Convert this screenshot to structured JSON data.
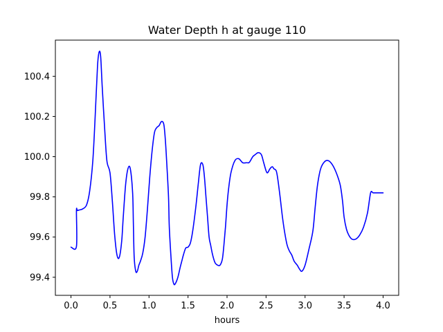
{
  "chart_data": {
    "type": "line",
    "title": "Water Depth h at gauge 110",
    "xlabel": "hours",
    "ylabel": "",
    "xlim": [
      -0.2,
      4.2
    ],
    "ylim": [
      99.31,
      100.58
    ],
    "xticks": [
      0.0,
      0.5,
      1.0,
      1.5,
      2.0,
      2.5,
      3.0,
      3.5,
      4.0
    ],
    "xtick_labels": [
      "0.0",
      "0.5",
      "1.0",
      "1.5",
      "2.0",
      "2.5",
      "3.0",
      "3.5",
      "4.0"
    ],
    "yticks": [
      99.4,
      99.6,
      99.8,
      100.0,
      100.2,
      100.4
    ],
    "ytick_labels": [
      "99.4",
      "99.6",
      "99.8",
      "100.0",
      "100.2",
      "100.4"
    ],
    "grid": false,
    "legend": "none",
    "series": [
      {
        "color": "#0000ff",
        "x": [
          0.0,
          0.07,
          0.07,
          0.08,
          0.1,
          0.15,
          0.2,
          0.24,
          0.28,
          0.31,
          0.34,
          0.36,
          0.38,
          0.4,
          0.43,
          0.46,
          0.5,
          0.53,
          0.56,
          0.59,
          0.62,
          0.65,
          0.67,
          0.7,
          0.73,
          0.76,
          0.79,
          0.8,
          0.81,
          0.83,
          0.85,
          0.87,
          0.89,
          0.92,
          0.95,
          0.98,
          1.01,
          1.04,
          1.07,
          1.1,
          1.13,
          1.16,
          1.19,
          1.21,
          1.23,
          1.25,
          1.26,
          1.28,
          1.3,
          1.32,
          1.34,
          1.37,
          1.4,
          1.42,
          1.44,
          1.47,
          1.5,
          1.53,
          1.56,
          1.6,
          1.63,
          1.66,
          1.69,
          1.71,
          1.73,
          1.75,
          1.77,
          1.79,
          1.81,
          1.83,
          1.85,
          1.88,
          1.91,
          1.94,
          1.96,
          1.98,
          2.0,
          2.02,
          2.05,
          2.1,
          2.15,
          2.2,
          2.25,
          2.28,
          2.3,
          2.33,
          2.36,
          2.4,
          2.44,
          2.47,
          2.5,
          2.52,
          2.55,
          2.58,
          2.6,
          2.63,
          2.65,
          2.68,
          2.71,
          2.74,
          2.77,
          2.8,
          2.83,
          2.86,
          2.9,
          2.93,
          2.96,
          3.0,
          3.05,
          3.1,
          3.13,
          3.16,
          3.2,
          3.25,
          3.3,
          3.35,
          3.4,
          3.45,
          3.48,
          3.5,
          3.53,
          3.56,
          3.6,
          3.65,
          3.7,
          3.75,
          3.8,
          3.84,
          3.87,
          3.9,
          3.93,
          3.96,
          4.0
        ],
        "values": [
          99.55,
          99.553,
          99.73,
          99.732,
          99.734,
          99.74,
          99.76,
          99.83,
          99.98,
          100.2,
          100.45,
          100.52,
          100.5,
          100.35,
          100.15,
          99.98,
          99.92,
          99.78,
          99.61,
          99.51,
          99.5,
          99.58,
          99.7,
          99.86,
          99.94,
          99.94,
          99.82,
          99.66,
          99.5,
          99.43,
          99.43,
          99.46,
          99.48,
          99.52,
          99.6,
          99.74,
          99.9,
          100.03,
          100.12,
          100.145,
          100.155,
          100.175,
          100.16,
          100.08,
          99.95,
          99.8,
          99.65,
          99.51,
          99.4,
          99.365,
          99.37,
          99.4,
          99.45,
          99.48,
          99.51,
          99.545,
          99.55,
          99.57,
          99.63,
          99.75,
          99.86,
          99.96,
          99.96,
          99.9,
          99.8,
          99.7,
          99.6,
          99.56,
          99.52,
          99.49,
          99.47,
          99.46,
          99.46,
          99.49,
          99.56,
          99.65,
          99.76,
          99.84,
          99.92,
          99.98,
          99.99,
          99.97,
          99.97,
          99.97,
          99.98,
          100.0,
          100.01,
          100.02,
          100.01,
          99.97,
          99.93,
          99.92,
          99.94,
          99.95,
          99.94,
          99.93,
          99.89,
          99.8,
          99.7,
          99.62,
          99.56,
          99.53,
          99.51,
          99.48,
          99.46,
          99.44,
          99.43,
          99.46,
          99.54,
          99.63,
          99.75,
          99.86,
          99.94,
          99.975,
          99.98,
          99.96,
          99.92,
          99.86,
          99.78,
          99.7,
          99.64,
          99.61,
          99.59,
          99.59,
          99.61,
          99.65,
          99.72,
          99.82,
          99.82,
          99.82,
          99.82,
          99.82,
          99.82
        ]
      }
    ]
  }
}
